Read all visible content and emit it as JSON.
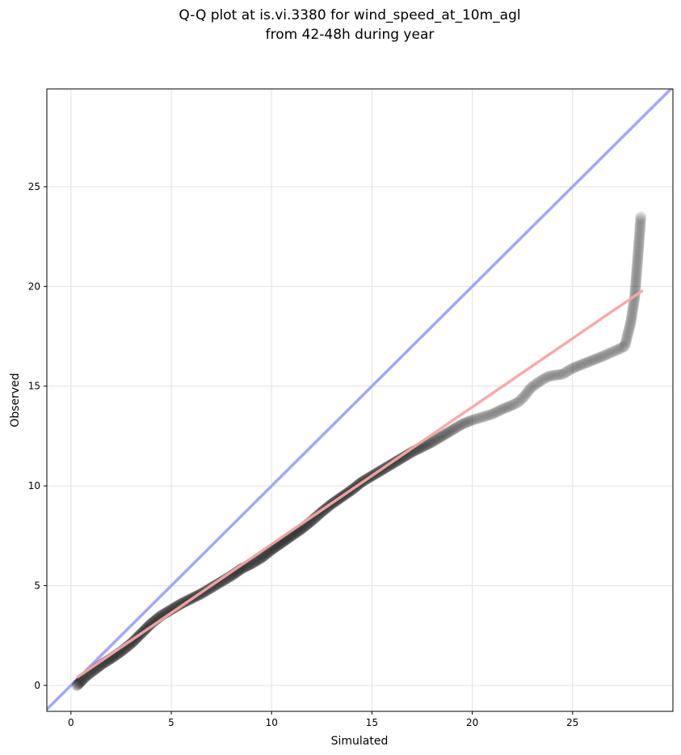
{
  "chart_data": {
    "type": "scatter",
    "title_line1": "Q-Q plot at is.vi.3380 for wind_speed_at_10m_agl",
    "title_line2": "from 42-48h during year",
    "xlabel": "Simulated",
    "ylabel": "Observed",
    "xlim": [
      -1.2,
      30
    ],
    "ylim": [
      -1.3,
      29.9
    ],
    "xticks": [
      0,
      5,
      10,
      15,
      20,
      25
    ],
    "yticks": [
      0,
      5,
      10,
      15,
      20,
      25
    ],
    "grid": true,
    "identity_line": {
      "color": "#a6a6f5",
      "from": [
        -1.2,
        -1.2
      ],
      "to": [
        30,
        30
      ]
    },
    "fit_line": {
      "color": "#f5a6a6",
      "from": [
        0.3,
        0.4
      ],
      "to": [
        28.5,
        19.8
      ]
    },
    "quantiles": [
      [
        0.3,
        0.0
      ],
      [
        0.5,
        0.2
      ],
      [
        0.8,
        0.5
      ],
      [
        1.2,
        0.8
      ],
      [
        1.6,
        1.1
      ],
      [
        2.0,
        1.35
      ],
      [
        2.5,
        1.7
      ],
      [
        3.0,
        2.1
      ],
      [
        3.5,
        2.6
      ],
      [
        4.0,
        3.1
      ],
      [
        4.5,
        3.5
      ],
      [
        5.0,
        3.8
      ],
      [
        5.5,
        4.1
      ],
      [
        6.0,
        4.35
      ],
      [
        6.5,
        4.6
      ],
      [
        7.0,
        4.9
      ],
      [
        7.5,
        5.2
      ],
      [
        8.0,
        5.5
      ],
      [
        8.5,
        5.85
      ],
      [
        9.0,
        6.1
      ],
      [
        9.5,
        6.4
      ],
      [
        10.0,
        6.8
      ],
      [
        10.5,
        7.15
      ],
      [
        11.0,
        7.5
      ],
      [
        11.5,
        7.85
      ],
      [
        12.0,
        8.25
      ],
      [
        12.5,
        8.7
      ],
      [
        13.0,
        9.1
      ],
      [
        13.5,
        9.45
      ],
      [
        14.0,
        9.8
      ],
      [
        14.5,
        10.2
      ],
      [
        15.0,
        10.5
      ],
      [
        15.5,
        10.8
      ],
      [
        16.0,
        11.1
      ],
      [
        16.5,
        11.4
      ],
      [
        17.0,
        11.7
      ],
      [
        17.5,
        11.95
      ],
      [
        18.0,
        12.2
      ],
      [
        18.5,
        12.5
      ],
      [
        19.0,
        12.8
      ],
      [
        19.5,
        13.1
      ],
      [
        20.0,
        13.3
      ],
      [
        20.5,
        13.45
      ],
      [
        21.0,
        13.6
      ],
      [
        21.5,
        13.85
      ],
      [
        22.0,
        14.05
      ],
      [
        22.3,
        14.2
      ],
      [
        22.6,
        14.5
      ],
      [
        22.9,
        14.9
      ],
      [
        23.3,
        15.2
      ],
      [
        23.8,
        15.5
      ],
      [
        24.5,
        15.6
      ],
      [
        25.0,
        15.9
      ],
      [
        25.5,
        16.1
      ],
      [
        26.0,
        16.3
      ],
      [
        26.5,
        16.5
      ],
      [
        27.4,
        16.9
      ],
      [
        27.6,
        17.0
      ],
      [
        27.9,
        18.2
      ],
      [
        28.1,
        19.5
      ],
      [
        28.3,
        22.1
      ],
      [
        28.4,
        23.5
      ]
    ]
  }
}
